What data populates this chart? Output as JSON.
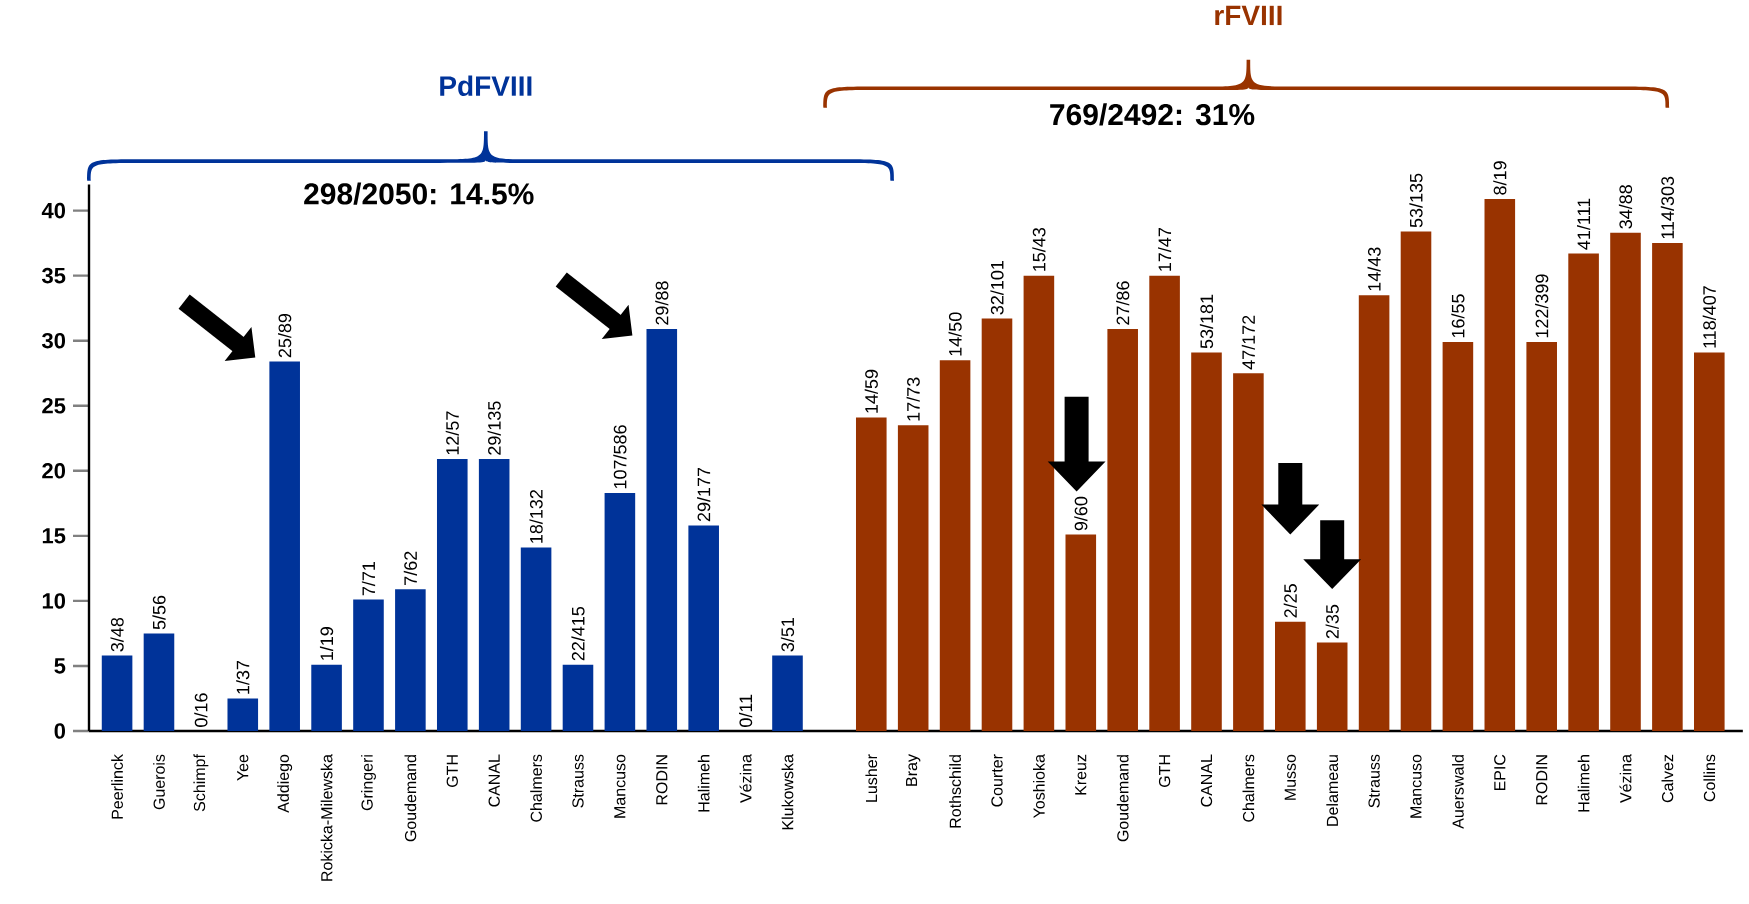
{
  "chart_data": {
    "type": "bar",
    "categories": [
      "Peerlinck",
      "Guerois",
      "Schimpf",
      "Yee",
      "Addiego",
      "Rokicka-Milewska",
      "Gringeri",
      "Goudemand",
      "GTH",
      "CANAL",
      "Chalmers",
      "Strauss",
      "Mancuso",
      "RODIN",
      "Halimeh",
      "Vézina",
      "Klukowska",
      null,
      "Lusher",
      "Bray",
      "Rothschild",
      "Courter",
      "Yoshioka",
      "Kreuz",
      "Goudemand",
      "GTH",
      "CANAL",
      "Chalmers",
      "Musso",
      "Delameau",
      "Strauss",
      "Mancuso",
      "Auerswald",
      "EPIC",
      "RODIN",
      "Halimeh",
      "Vézina",
      "Calvez",
      "Collins"
    ],
    "series": [
      {
        "name": "PdFVIII",
        "color": "#003399",
        "values": [
          5.8,
          7.5,
          0,
          2.5,
          28.4,
          5.1,
          10.1,
          10.9,
          20.9,
          20.9,
          14.1,
          5.1,
          18.3,
          30.9,
          15.8,
          0,
          5.8,
          null,
          null,
          null,
          null,
          null,
          null,
          null,
          null,
          null,
          null,
          null,
          null,
          null,
          null,
          null,
          null,
          null,
          null,
          null,
          null,
          null,
          null
        ],
        "value_labels": [
          "3/48",
          "5/56",
          "0/16",
          "1/37",
          "25/89",
          "1/19",
          "7/71",
          "7/62",
          "12/57",
          "29/135",
          "18/132",
          "22/415",
          "107/586",
          "29/88",
          "29/177",
          "0/11",
          "3/51",
          null,
          null,
          null,
          null,
          null,
          null,
          null,
          null,
          null,
          null,
          null,
          null,
          null,
          null,
          null,
          null,
          null,
          null,
          null,
          null,
          null,
          null
        ]
      },
      {
        "name": "rFVIII",
        "color": "#993300",
        "values": [
          null,
          null,
          null,
          null,
          null,
          null,
          null,
          null,
          null,
          null,
          null,
          null,
          null,
          null,
          null,
          null,
          null,
          null,
          24.1,
          23.5,
          28.5,
          31.7,
          35.0,
          15.1,
          30.9,
          35.0,
          29.1,
          27.5,
          8.4,
          6.8,
          33.5,
          38.4,
          29.9,
          40.9,
          29.9,
          36.7,
          38.3,
          37.5,
          29.1
        ],
        "value_labels": [
          null,
          null,
          null,
          null,
          null,
          null,
          null,
          null,
          null,
          null,
          null,
          null,
          null,
          null,
          null,
          null,
          null,
          null,
          "14/59",
          "17/73",
          "14/50",
          "32/101",
          "15/43",
          "9/60",
          "27/86",
          "17/47",
          "53/181",
          "47/172",
          "2/25",
          "2/35",
          "14/43",
          "53/135",
          "16/55",
          "8/19",
          "122/399",
          "41/111",
          "34/88",
          "114/303",
          "118/407"
        ]
      }
    ],
    "annotations": [
      "298/2050: 14.5%",
      "769/2492: 31%"
    ],
    "ylim": [
      0,
      42
    ],
    "yticks": [
      0,
      5,
      10,
      15,
      20,
      25,
      30,
      35,
      40
    ]
  }
}
